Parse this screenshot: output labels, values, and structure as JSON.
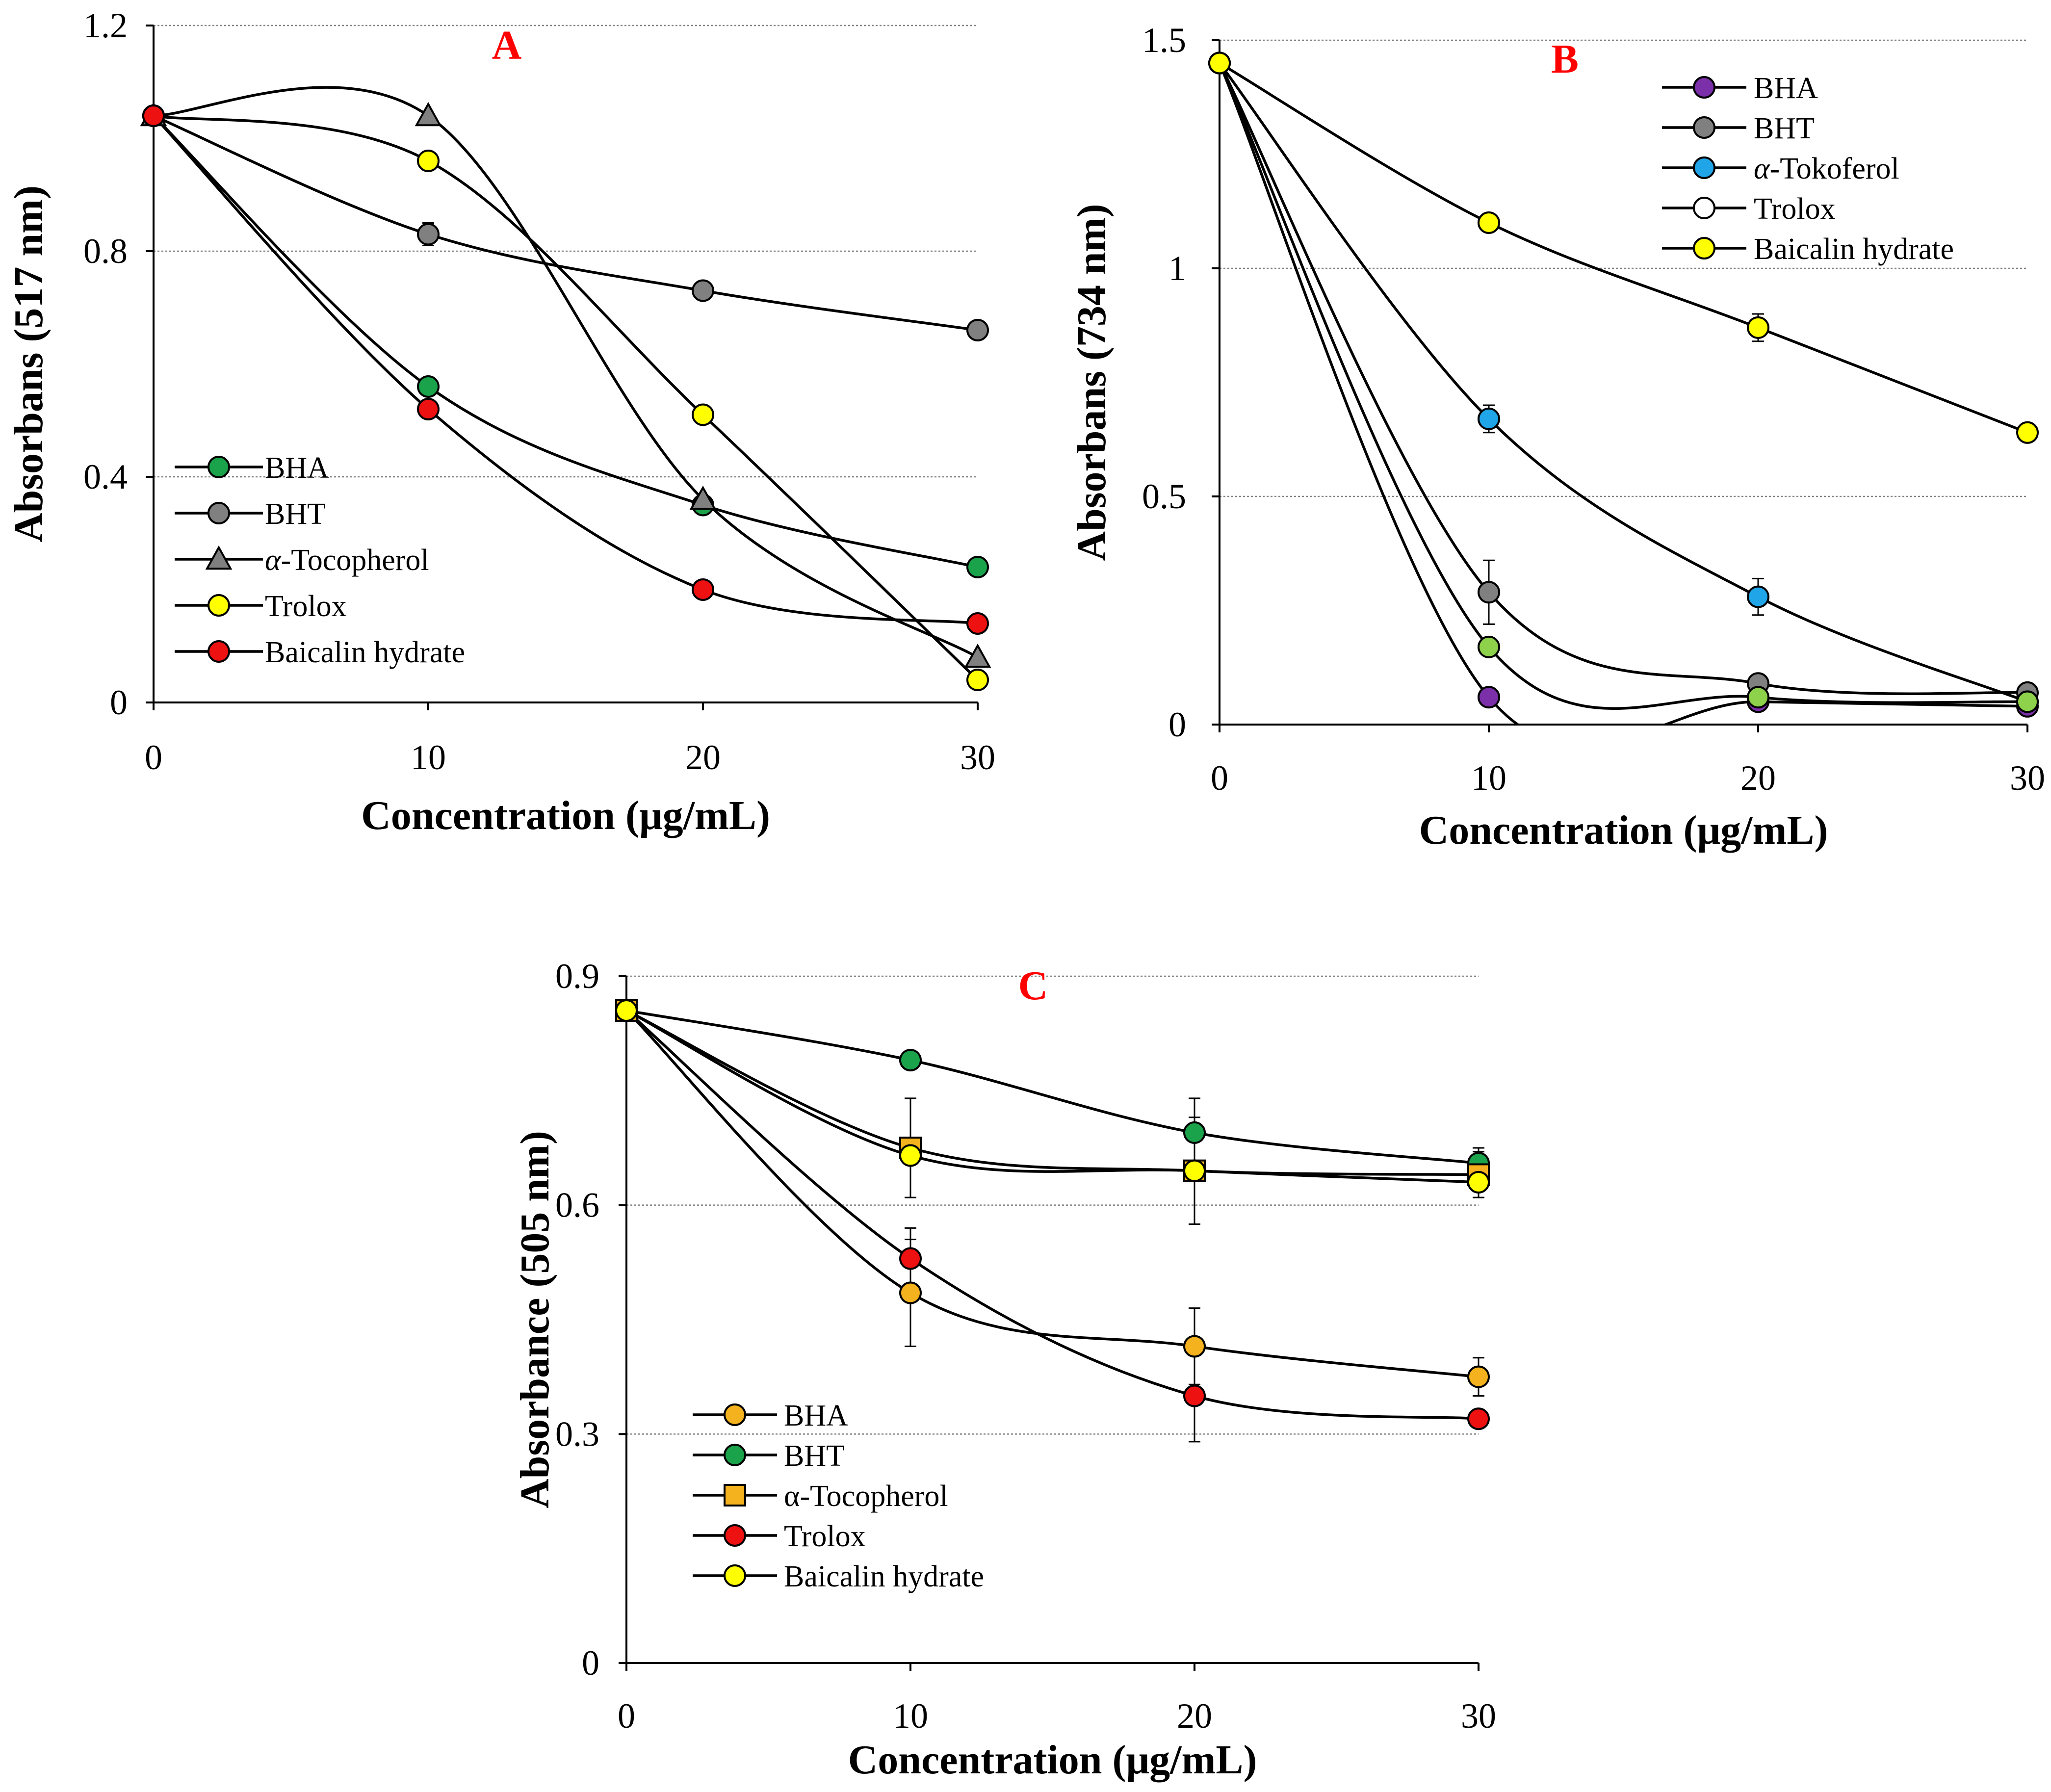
{
  "chart_data": [
    {
      "type": "line",
      "panel_label": "A",
      "xlabel": "Concentration (μg/mL)",
      "ylabel": "Absorbans (517 nm)",
      "x": [
        0,
        10,
        20,
        30
      ],
      "xlim": [
        0,
        30
      ],
      "ylim": [
        0,
        1.2
      ],
      "xticks": [
        0,
        10,
        20,
        30
      ],
      "yticks": [
        0,
        0.4,
        0.8,
        1.2
      ],
      "ytick_labels": [
        "0",
        "0.4",
        "0.8",
        "1.2"
      ],
      "grid": true,
      "legend_position": "bottom-left",
      "series": [
        {
          "name": "BHA",
          "legend_label": "BHA",
          "marker": "circle",
          "color": "#1aa34a",
          "values": [
            1.04,
            0.56,
            0.35,
            0.24
          ],
          "errors": [
            0,
            0,
            0,
            0
          ]
        },
        {
          "name": "BHT",
          "legend_label": "BHT",
          "marker": "circle",
          "color": "#808080",
          "values": [
            1.04,
            0.83,
            0.73,
            0.66
          ],
          "errors": [
            0,
            0.02,
            0,
            0
          ]
        },
        {
          "name": "α-Tocopherol",
          "legend_italic": "α",
          "legend_label": "-Tocopherol",
          "marker": "triangle",
          "color": "#808080",
          "values": [
            1.04,
            1.04,
            0.36,
            0.08
          ],
          "errors": [
            0,
            0,
            0,
            0
          ]
        },
        {
          "name": "Trolox",
          "legend_label": "Trolox",
          "marker": "circle",
          "color": "#ffff00",
          "values": [
            1.04,
            0.96,
            0.51,
            0.04
          ],
          "errors": [
            0,
            0,
            0,
            0
          ]
        },
        {
          "name": "Baicalin hydrate",
          "legend_label": "Baicalin hydrate",
          "marker": "circle",
          "color": "#ee1111",
          "values": [
            1.04,
            0.52,
            0.2,
            0.14
          ],
          "errors": [
            0,
            0,
            0,
            0
          ]
        }
      ]
    },
    {
      "type": "line",
      "panel_label": "B",
      "xlabel": "Concentration (μg/mL)",
      "ylabel": "Absorbans (734 nm)",
      "x": [
        0,
        10,
        20,
        30
      ],
      "xlim": [
        0,
        30
      ],
      "ylim": [
        0,
        1.5
      ],
      "xticks": [
        0,
        10,
        20,
        30
      ],
      "yticks": [
        0,
        0.5,
        1,
        1.5
      ],
      "ytick_labels": [
        "0",
        "0.5",
        "1",
        "1.5"
      ],
      "grid": true,
      "legend_position": "top-right",
      "series": [
        {
          "name": "BHA",
          "legend_label": "BHA",
          "marker": "circle",
          "color": "#7b2fa8",
          "values": [
            1.45,
            0.06,
            0.05,
            0.04
          ],
          "errors": [
            0,
            0,
            0,
            0
          ]
        },
        {
          "name": "BHT",
          "legend_label": "BHT",
          "marker": "circle",
          "color": "#808080",
          "values": [
            1.45,
            0.29,
            0.09,
            0.07
          ],
          "errors": [
            0,
            0.07,
            0,
            0
          ]
        },
        {
          "name": "α-Tokoferol",
          "legend_italic": "α",
          "legend_label": "-Tokoferol",
          "marker": "circle",
          "color": "#1fa5e8",
          "values": [
            1.45,
            0.67,
            0.28,
            0.05
          ],
          "errors": [
            0,
            0.03,
            0.04,
            0
          ]
        },
        {
          "name": "Trolox",
          "legend_label": "Trolox",
          "marker": "circle",
          "color": "#ffffff",
          "values": [
            1.45,
            0.17,
            0.06,
            0.05
          ],
          "errors": [
            0,
            0,
            0,
            0
          ],
          "plot_color": "#8ed14a"
        },
        {
          "name": "Baicalin hydrate",
          "legend_label": "Baicalin hydrate",
          "marker": "circle",
          "color": "#ffff00",
          "values": [
            1.45,
            1.1,
            0.87,
            0.64
          ],
          "errors": [
            0,
            0,
            0.03,
            0
          ]
        }
      ]
    },
    {
      "type": "line",
      "panel_label": "C",
      "xlabel": "Concentration (μg/mL)",
      "ylabel": "Absorbance (505 nm)",
      "x": [
        0,
        10,
        20,
        30
      ],
      "xlim": [
        0,
        30
      ],
      "ylim": [
        0,
        0.9
      ],
      "xticks": [
        0,
        10,
        20,
        30
      ],
      "yticks": [
        0,
        0.3,
        0.6,
        0.9
      ],
      "ytick_labels": [
        "0",
        "0.3",
        "0.6",
        "0.9"
      ],
      "grid": true,
      "legend_position": "bottom-left",
      "series": [
        {
          "name": "BHA",
          "legend_label": "BHA",
          "marker": "circle",
          "color": "#f5b21f",
          "values": [
            0.855,
            0.485,
            0.415,
            0.375
          ],
          "errors": [
            0,
            0.07,
            0.05,
            0.025
          ]
        },
        {
          "name": "BHT",
          "legend_label": "BHT",
          "marker": "circle",
          "color": "#1aa34a",
          "values": [
            0.855,
            0.79,
            0.695,
            0.655
          ],
          "errors": [
            0,
            0.012,
            0.045,
            0.02
          ]
        },
        {
          "name": "α-Tocopherol",
          "legend_label": "α-Tocopherol",
          "marker": "square",
          "color": "#f5b21f",
          "values": [
            0.855,
            0.675,
            0.645,
            0.64
          ],
          "errors": [
            0,
            0.065,
            0.07,
            0.03
          ]
        },
        {
          "name": "Trolox",
          "legend_label": "Trolox",
          "marker": "circle",
          "color": "#ee1111",
          "values": [
            0.855,
            0.53,
            0.35,
            0.32
          ],
          "errors": [
            0,
            0.04,
            0.06,
            0.01
          ]
        },
        {
          "name": "Baicalin hydrate",
          "legend_label": "Baicalin hydrate",
          "marker": "circle",
          "color": "#ffff00",
          "values": [
            0.855,
            0.665,
            0.645,
            0.63
          ],
          "errors": [
            0,
            0,
            0,
            0
          ]
        }
      ]
    }
  ]
}
